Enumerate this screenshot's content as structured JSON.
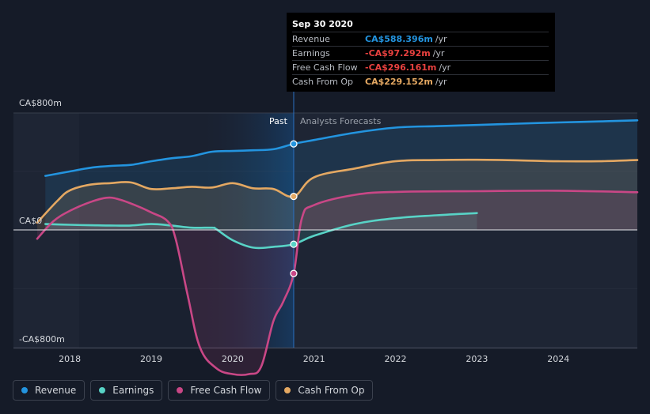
{
  "chart_data": {
    "type": "line",
    "y_ticks": [
      {
        "label": "CA$800m",
        "value": 800
      },
      {
        "label": "CA$0",
        "value": 0
      },
      {
        "label": "-CA$800m",
        "value": -800
      }
    ],
    "ylim": [
      -800,
      800
    ],
    "x_ticks": [
      "2018",
      "2019",
      "2020",
      "2021",
      "2022",
      "2023",
      "2024"
    ],
    "x_tick_values": [
      2018,
      2019,
      2020,
      2021,
      2022,
      2023,
      2024
    ],
    "xlim": [
      2017.6,
      2024.97
    ],
    "past_label": "Past",
    "forecast_label": "Analysts Forecasts",
    "divider_x": 2020.75,
    "series": [
      {
        "name": "Revenue",
        "color": "#2394df",
        "points": [
          [
            2017.7,
            370
          ],
          [
            2018.0,
            400
          ],
          [
            2018.25,
            425
          ],
          [
            2018.5,
            438
          ],
          [
            2018.75,
            445
          ],
          [
            2019.0,
            470
          ],
          [
            2019.25,
            490
          ],
          [
            2019.5,
            505
          ],
          [
            2019.75,
            535
          ],
          [
            2020.0,
            540
          ],
          [
            2020.25,
            545
          ],
          [
            2020.5,
            552
          ],
          [
            2020.75,
            588.4
          ],
          [
            2021.0,
            615
          ],
          [
            2021.5,
            665
          ],
          [
            2022.0,
            700
          ],
          [
            2022.5,
            710
          ],
          [
            2023.0,
            718
          ],
          [
            2023.5,
            727
          ],
          [
            2024.0,
            735
          ],
          [
            2024.5,
            742
          ],
          [
            2024.97,
            750
          ]
        ]
      },
      {
        "name": "Earnings",
        "color": "#58d3c6",
        "points": [
          [
            2017.7,
            40
          ],
          [
            2018.0,
            35
          ],
          [
            2018.25,
            32
          ],
          [
            2018.5,
            30
          ],
          [
            2018.75,
            30
          ],
          [
            2019.0,
            40
          ],
          [
            2019.25,
            30
          ],
          [
            2019.5,
            15
          ],
          [
            2019.75,
            15
          ],
          [
            2019.8,
            5
          ],
          [
            2020.0,
            -70
          ],
          [
            2020.25,
            -120
          ],
          [
            2020.5,
            -115
          ],
          [
            2020.75,
            -97.3
          ],
          [
            2021.0,
            -40
          ],
          [
            2021.5,
            40
          ],
          [
            2022.0,
            80
          ],
          [
            2022.5,
            100
          ],
          [
            2023.0,
            115
          ]
        ]
      },
      {
        "name": "Free Cash Flow",
        "color": "#c94786",
        "points": [
          [
            2017.6,
            -60
          ],
          [
            2017.8,
            60
          ],
          [
            2018.0,
            130
          ],
          [
            2018.25,
            190
          ],
          [
            2018.45,
            220
          ],
          [
            2018.6,
            210
          ],
          [
            2018.8,
            170
          ],
          [
            2019.0,
            120
          ],
          [
            2019.2,
            60
          ],
          [
            2019.3,
            -60
          ],
          [
            2019.45,
            -450
          ],
          [
            2019.6,
            -800
          ],
          [
            2019.8,
            -940
          ],
          [
            2020.0,
            -980
          ],
          [
            2020.2,
            -980
          ],
          [
            2020.35,
            -930
          ],
          [
            2020.5,
            -620
          ],
          [
            2020.62,
            -490
          ],
          [
            2020.75,
            -296.2
          ],
          [
            2020.85,
            80
          ],
          [
            2021.0,
            170
          ],
          [
            2021.5,
            240
          ],
          [
            2022.0,
            260
          ],
          [
            2023.0,
            265
          ],
          [
            2024.0,
            268
          ],
          [
            2024.97,
            258
          ]
        ]
      },
      {
        "name": "Cash From Op",
        "color": "#e4a862",
        "points": [
          [
            2017.6,
            50
          ],
          [
            2017.85,
            200
          ],
          [
            2018.0,
            270
          ],
          [
            2018.25,
            310
          ],
          [
            2018.5,
            320
          ],
          [
            2018.75,
            325
          ],
          [
            2019.0,
            280
          ],
          [
            2019.25,
            285
          ],
          [
            2019.5,
            295
          ],
          [
            2019.75,
            290
          ],
          [
            2020.0,
            320
          ],
          [
            2020.25,
            285
          ],
          [
            2020.5,
            280
          ],
          [
            2020.75,
            229.2
          ],
          [
            2021.0,
            360
          ],
          [
            2021.5,
            420
          ],
          [
            2022.0,
            470
          ],
          [
            2022.5,
            478
          ],
          [
            2023.0,
            480
          ],
          [
            2023.5,
            476
          ],
          [
            2024.0,
            470
          ],
          [
            2024.5,
            470
          ],
          [
            2024.97,
            478
          ]
        ]
      }
    ]
  },
  "tooltip": {
    "date": "Sep 30 2020",
    "rows": [
      {
        "label": "Revenue",
        "value": "CA$588.396m",
        "unit": "/yr",
        "color": "#2394df"
      },
      {
        "label": "Earnings",
        "value": "-CA$97.292m",
        "unit": "/yr",
        "color": "#e8413f"
      },
      {
        "label": "Free Cash Flow",
        "value": "-CA$296.161m",
        "unit": "/yr",
        "color": "#e8413f"
      },
      {
        "label": "Cash From Op",
        "value": "CA$229.152m",
        "unit": "/yr",
        "color": "#e4a862"
      }
    ]
  },
  "legend": [
    {
      "label": "Revenue",
      "color": "#2394df"
    },
    {
      "label": "Earnings",
      "color": "#58d3c6"
    },
    {
      "label": "Free Cash Flow",
      "color": "#c94786"
    },
    {
      "label": "Cash From Op",
      "color": "#e4a862"
    }
  ]
}
